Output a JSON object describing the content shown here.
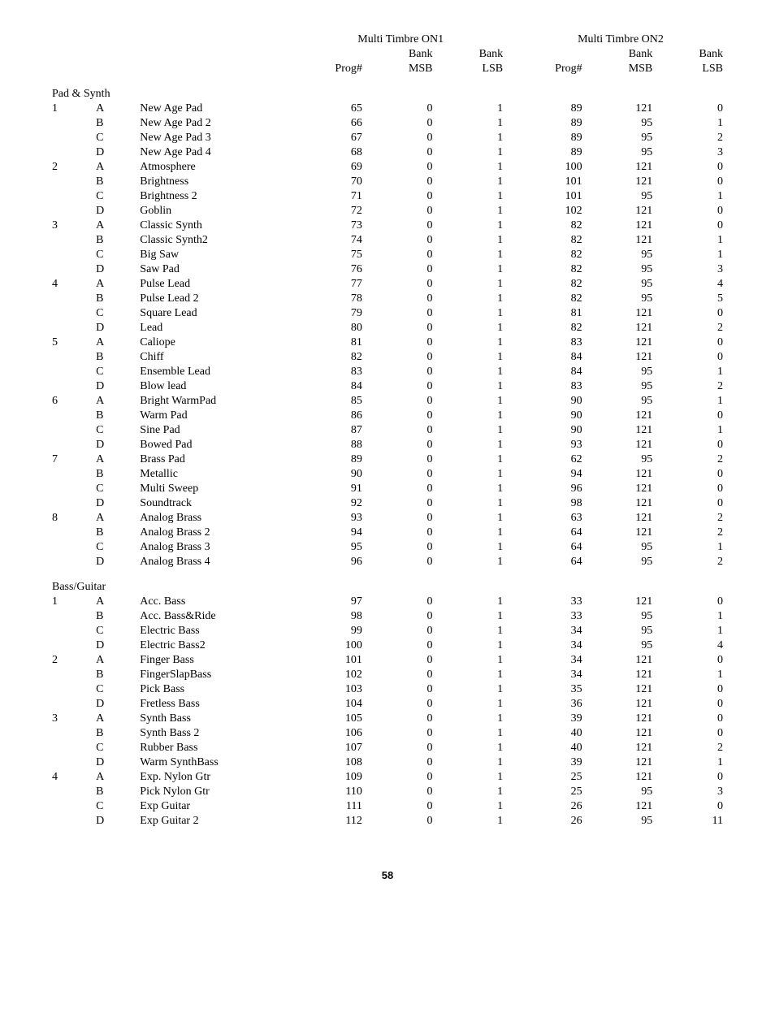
{
  "headers": {
    "group1_title": "Multi Timbre ON1",
    "group2_title": "Multi Timbre ON2",
    "prog": "Prog#",
    "bank_top": "Bank",
    "msb": "MSB",
    "lsb": "LSB"
  },
  "sections": [
    {
      "title": "Pad & Synth",
      "groups": [
        {
          "num": "1",
          "rows": [
            {
              "v": "A",
              "name": "New Age Pad",
              "p1": 65,
              "m1": 0,
              "l1": 1,
              "p2": 89,
              "m2": 121,
              "l2": 0
            },
            {
              "v": "B",
              "name": "New Age Pad 2",
              "p1": 66,
              "m1": 0,
              "l1": 1,
              "p2": 89,
              "m2": 95,
              "l2": 1
            },
            {
              "v": "C",
              "name": "New Age Pad 3",
              "p1": 67,
              "m1": 0,
              "l1": 1,
              "p2": 89,
              "m2": 95,
              "l2": 2
            },
            {
              "v": "D",
              "name": "New Age Pad 4",
              "p1": 68,
              "m1": 0,
              "l1": 1,
              "p2": 89,
              "m2": 95,
              "l2": 3
            }
          ]
        },
        {
          "num": "2",
          "rows": [
            {
              "v": "A",
              "name": "Atmosphere",
              "p1": 69,
              "m1": 0,
              "l1": 1,
              "p2": 100,
              "m2": 121,
              "l2": 0
            },
            {
              "v": "B",
              "name": "Brightness",
              "p1": 70,
              "m1": 0,
              "l1": 1,
              "p2": 101,
              "m2": 121,
              "l2": 0
            },
            {
              "v": "C",
              "name": "Brightness 2",
              "p1": 71,
              "m1": 0,
              "l1": 1,
              "p2": 101,
              "m2": 95,
              "l2": 1
            },
            {
              "v": "D",
              "name": "Goblin",
              "p1": 72,
              "m1": 0,
              "l1": 1,
              "p2": 102,
              "m2": 121,
              "l2": 0
            }
          ]
        },
        {
          "num": "3",
          "rows": [
            {
              "v": "A",
              "name": "Classic Synth",
              "p1": 73,
              "m1": 0,
              "l1": 1,
              "p2": 82,
              "m2": 121,
              "l2": 0
            },
            {
              "v": "B",
              "name": "Classic Synth2",
              "p1": 74,
              "m1": 0,
              "l1": 1,
              "p2": 82,
              "m2": 121,
              "l2": 1
            },
            {
              "v": "C",
              "name": "Big Saw",
              "p1": 75,
              "m1": 0,
              "l1": 1,
              "p2": 82,
              "m2": 95,
              "l2": 1
            },
            {
              "v": "D",
              "name": "Saw Pad",
              "p1": 76,
              "m1": 0,
              "l1": 1,
              "p2": 82,
              "m2": 95,
              "l2": 3
            }
          ]
        },
        {
          "num": "4",
          "rows": [
            {
              "v": "A",
              "name": "Pulse Lead",
              "p1": 77,
              "m1": 0,
              "l1": 1,
              "p2": 82,
              "m2": 95,
              "l2": 4
            },
            {
              "v": "B",
              "name": "Pulse Lead 2",
              "p1": 78,
              "m1": 0,
              "l1": 1,
              "p2": 82,
              "m2": 95,
              "l2": 5
            },
            {
              "v": "C",
              "name": "Square Lead",
              "p1": 79,
              "m1": 0,
              "l1": 1,
              "p2": 81,
              "m2": 121,
              "l2": 0
            },
            {
              "v": "D",
              "name": "Lead",
              "p1": 80,
              "m1": 0,
              "l1": 1,
              "p2": 82,
              "m2": 121,
              "l2": 2
            }
          ]
        },
        {
          "num": "5",
          "rows": [
            {
              "v": "A",
              "name": "Caliope",
              "p1": 81,
              "m1": 0,
              "l1": 1,
              "p2": 83,
              "m2": 121,
              "l2": 0
            },
            {
              "v": "B",
              "name": "Chiff",
              "p1": 82,
              "m1": 0,
              "l1": 1,
              "p2": 84,
              "m2": 121,
              "l2": 0
            },
            {
              "v": "C",
              "name": "Ensemble Lead",
              "p1": 83,
              "m1": 0,
              "l1": 1,
              "p2": 84,
              "m2": 95,
              "l2": 1
            },
            {
              "v": "D",
              "name": "Blow lead",
              "p1": 84,
              "m1": 0,
              "l1": 1,
              "p2": 83,
              "m2": 95,
              "l2": 2
            }
          ]
        },
        {
          "num": "6",
          "rows": [
            {
              "v": "A",
              "name": "Bright WarmPad",
              "p1": 85,
              "m1": 0,
              "l1": 1,
              "p2": 90,
              "m2": 95,
              "l2": 1
            },
            {
              "v": "B",
              "name": "Warm Pad",
              "p1": 86,
              "m1": 0,
              "l1": 1,
              "p2": 90,
              "m2": 121,
              "l2": 0
            },
            {
              "v": "C",
              "name": "Sine Pad",
              "p1": 87,
              "m1": 0,
              "l1": 1,
              "p2": 90,
              "m2": 121,
              "l2": 1
            },
            {
              "v": "D",
              "name": "Bowed Pad",
              "p1": 88,
              "m1": 0,
              "l1": 1,
              "p2": 93,
              "m2": 121,
              "l2": 0
            }
          ]
        },
        {
          "num": "7",
          "rows": [
            {
              "v": "A",
              "name": "Brass Pad",
              "p1": 89,
              "m1": 0,
              "l1": 1,
              "p2": 62,
              "m2": 95,
              "l2": 2
            },
            {
              "v": "B",
              "name": "Metallic",
              "p1": 90,
              "m1": 0,
              "l1": 1,
              "p2": 94,
              "m2": 121,
              "l2": 0
            },
            {
              "v": "C",
              "name": "Multi Sweep",
              "p1": 91,
              "m1": 0,
              "l1": 1,
              "p2": 96,
              "m2": 121,
              "l2": 0
            },
            {
              "v": "D",
              "name": "Soundtrack",
              "p1": 92,
              "m1": 0,
              "l1": 1,
              "p2": 98,
              "m2": 121,
              "l2": 0
            }
          ]
        },
        {
          "num": "8",
          "rows": [
            {
              "v": "A",
              "name": "Analog Brass",
              "p1": 93,
              "m1": 0,
              "l1": 1,
              "p2": 63,
              "m2": 121,
              "l2": 2
            },
            {
              "v": "B",
              "name": "Analog Brass 2",
              "p1": 94,
              "m1": 0,
              "l1": 1,
              "p2": 64,
              "m2": 121,
              "l2": 2
            },
            {
              "v": "C",
              "name": "Analog Brass 3",
              "p1": 95,
              "m1": 0,
              "l1": 1,
              "p2": 64,
              "m2": 95,
              "l2": 1
            },
            {
              "v": "D",
              "name": "Analog Brass 4",
              "p1": 96,
              "m1": 0,
              "l1": 1,
              "p2": 64,
              "m2": 95,
              "l2": 2
            }
          ]
        }
      ]
    },
    {
      "title": "Bass/Guitar",
      "groups": [
        {
          "num": "1",
          "rows": [
            {
              "v": "A",
              "name": "Acc. Bass",
              "p1": 97,
              "m1": 0,
              "l1": 1,
              "p2": 33,
              "m2": 121,
              "l2": 0
            },
            {
              "v": "B",
              "name": "Acc. Bass&Ride",
              "p1": 98,
              "m1": 0,
              "l1": 1,
              "p2": 33,
              "m2": 95,
              "l2": 1
            },
            {
              "v": "C",
              "name": "Electric Bass",
              "p1": 99,
              "m1": 0,
              "l1": 1,
              "p2": 34,
              "m2": 95,
              "l2": 1
            },
            {
              "v": "D",
              "name": "Electric Bass2",
              "p1": 100,
              "m1": 0,
              "l1": 1,
              "p2": 34,
              "m2": 95,
              "l2": 4
            }
          ]
        },
        {
          "num": "2",
          "rows": [
            {
              "v": "A",
              "name": "Finger Bass",
              "p1": 101,
              "m1": 0,
              "l1": 1,
              "p2": 34,
              "m2": 121,
              "l2": 0
            },
            {
              "v": "B",
              "name": "FingerSlapBass",
              "p1": 102,
              "m1": 0,
              "l1": 1,
              "p2": 34,
              "m2": 121,
              "l2": 1
            },
            {
              "v": "C",
              "name": "Pick Bass",
              "p1": 103,
              "m1": 0,
              "l1": 1,
              "p2": 35,
              "m2": 121,
              "l2": 0
            },
            {
              "v": "D",
              "name": "Fretless Bass",
              "p1": 104,
              "m1": 0,
              "l1": 1,
              "p2": 36,
              "m2": 121,
              "l2": 0
            }
          ]
        },
        {
          "num": "3",
          "rows": [
            {
              "v": "A",
              "name": "Synth Bass",
              "p1": 105,
              "m1": 0,
              "l1": 1,
              "p2": 39,
              "m2": 121,
              "l2": 0
            },
            {
              "v": "B",
              "name": "Synth Bass 2",
              "p1": 106,
              "m1": 0,
              "l1": 1,
              "p2": 40,
              "m2": 121,
              "l2": 0
            },
            {
              "v": "C",
              "name": "Rubber Bass",
              "p1": 107,
              "m1": 0,
              "l1": 1,
              "p2": 40,
              "m2": 121,
              "l2": 2
            },
            {
              "v": "D",
              "name": "Warm SynthBass",
              "p1": 108,
              "m1": 0,
              "l1": 1,
              "p2": 39,
              "m2": 121,
              "l2": 1
            }
          ]
        },
        {
          "num": "4",
          "rows": [
            {
              "v": "A",
              "name": "Exp. Nylon Gtr",
              "p1": 109,
              "m1": 0,
              "l1": 1,
              "p2": 25,
              "m2": 121,
              "l2": 0
            },
            {
              "v": "B",
              "name": "Pick Nylon Gtr",
              "p1": 110,
              "m1": 0,
              "l1": 1,
              "p2": 25,
              "m2": 95,
              "l2": 3
            },
            {
              "v": "C",
              "name": "Exp Guitar",
              "p1": 111,
              "m1": 0,
              "l1": 1,
              "p2": 26,
              "m2": 121,
              "l2": 0
            },
            {
              "v": "D",
              "name": "Exp Guitar 2",
              "p1": 112,
              "m1": 0,
              "l1": 1,
              "p2": 26,
              "m2": 95,
              "l2": 11
            }
          ]
        }
      ]
    }
  ],
  "page_number": "58"
}
